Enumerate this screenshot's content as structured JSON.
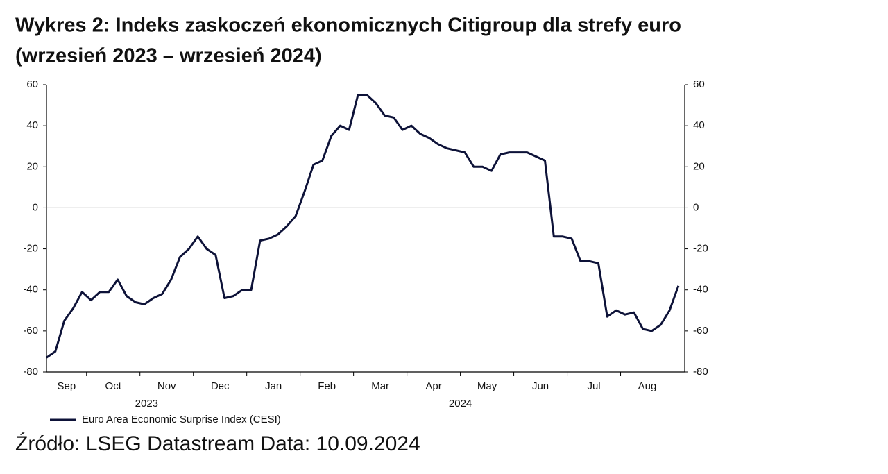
{
  "chart_data": {
    "type": "line",
    "title": "Wykres 2: Indeks zaskoczeń ekonomicznych Citigroup dla strefy euro",
    "subtitle": "(wrzesień 2023 – wrzesień 2024)",
    "source": "Źródło: LSEG Datastream Data: 10.09.2024",
    "categories": [
      "Sep",
      null,
      null,
      null,
      null,
      "Oct",
      null,
      null,
      null,
      null,
      null,
      "Nov",
      null,
      null,
      null,
      null,
      null,
      "Dec",
      null,
      null,
      null,
      null,
      null,
      "Jan",
      null,
      null,
      null,
      null,
      null,
      "Feb",
      null,
      null,
      null,
      null,
      null,
      "Mar",
      null,
      null,
      null,
      null,
      null,
      "Apr",
      null,
      null,
      null,
      null,
      null,
      "May",
      null,
      null,
      null,
      null,
      null,
      "Jun",
      null,
      null,
      null,
      null,
      null,
      "Jul",
      null,
      null,
      null,
      null,
      null,
      "Aug",
      null,
      null,
      null,
      null,
      null,
      null
    ],
    "years": [
      "2023",
      "2024"
    ],
    "series": [
      {
        "name": "Euro Area Economic Surprise Index (CESI)",
        "color": "#0d1238",
        "values": [
          -73,
          -70,
          -55,
          -49,
          -41,
          -45,
          -41,
          -41,
          -35,
          -43,
          -46,
          -47,
          -44,
          -42,
          -35,
          -24,
          -20,
          -14,
          -20,
          -23,
          -44,
          -43,
          -40,
          -40,
          -16,
          -15,
          -13,
          -9,
          -4,
          8,
          21,
          23,
          35,
          40,
          38,
          55,
          55,
          51,
          45,
          44,
          38,
          40,
          36,
          34,
          31,
          29,
          28,
          27,
          20,
          20,
          18,
          26,
          27,
          27,
          27,
          25,
          23,
          -14,
          -14,
          -15,
          -26,
          -26,
          -27,
          -53,
          -50,
          -52,
          -51,
          -59,
          -60,
          -57,
          -50,
          -38
        ]
      }
    ],
    "ylim": [
      -80,
      60
    ],
    "yticks": [
      -80,
      -60,
      -40,
      -20,
      0,
      20,
      40,
      60
    ],
    "y2lim": [
      -80,
      60
    ],
    "y2ticks": [
      -80,
      -60,
      -40,
      -20,
      0,
      20,
      40,
      60
    ],
    "zero_line": true
  }
}
